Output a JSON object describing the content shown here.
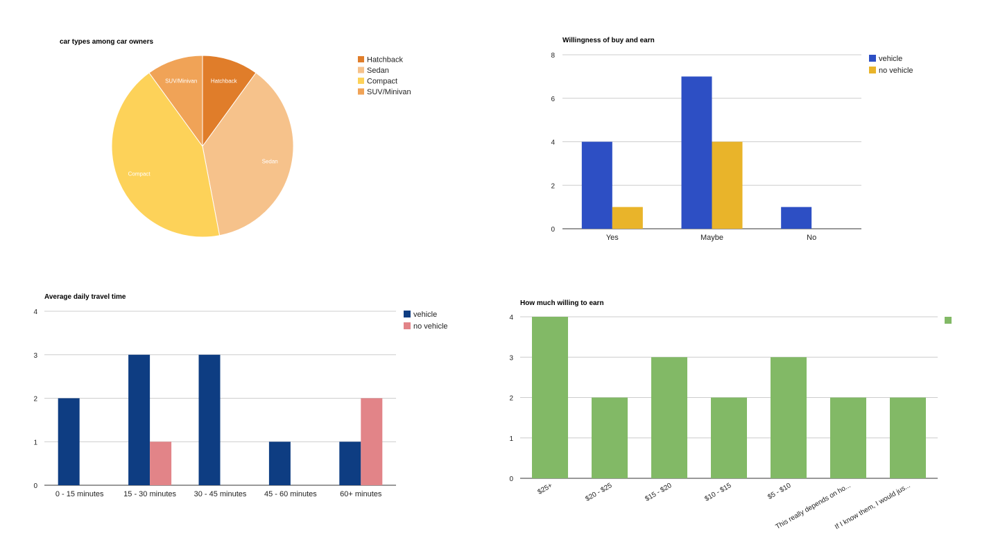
{
  "chart_data": [
    {
      "type": "pie",
      "title": "car types among car owners",
      "categories": [
        "Hatchback",
        "Sedan",
        "Compact",
        "SUV/Minivan"
      ],
      "values": [
        10,
        37,
        43,
        10
      ],
      "colors": [
        "#e07d2a",
        "#f6c28b",
        "#fdd259",
        "#f0a357"
      ],
      "legend": "right"
    },
    {
      "type": "bar",
      "title": "Willingness of buy and earn",
      "categories": [
        "Yes",
        "Maybe",
        "No"
      ],
      "series": [
        {
          "name": "vehicle",
          "values": [
            4,
            7,
            1
          ],
          "color": "#2d4fc4"
        },
        {
          "name": "no vehicle",
          "values": [
            1,
            4,
            0
          ],
          "color": "#e9b42a"
        }
      ],
      "ylim": [
        0,
        8
      ],
      "yticks": [
        0,
        2,
        4,
        6,
        8
      ],
      "grid": true,
      "legend": "right"
    },
    {
      "type": "bar",
      "title": "Average daily travel time",
      "categories": [
        "0 - 15 minutes",
        "15 - 30 minutes",
        "30 - 45 minutes",
        "45 - 60 minutes",
        "60+ minutes"
      ],
      "series": [
        {
          "name": "vehicle",
          "values": [
            2,
            3,
            3,
            1,
            1
          ],
          "color": "#0e3d82"
        },
        {
          "name": "no vehicle",
          "values": [
            0,
            1,
            0,
            0,
            2
          ],
          "color": "#e28488"
        }
      ],
      "ylim": [
        0,
        4
      ],
      "yticks": [
        0,
        1,
        2,
        3,
        4
      ],
      "grid": true,
      "legend": "right"
    },
    {
      "type": "bar",
      "title": "How much willing to earn",
      "categories": [
        "$25+",
        "$20 - $25",
        "$15 - $20",
        "$10 - $15",
        "$5 - $10",
        "This really depends on ho...",
        "If I know them, I would jus..."
      ],
      "series": [
        {
          "values": [
            4,
            2,
            3,
            2,
            3,
            2,
            2
          ],
          "color": "#82b966"
        }
      ],
      "ylim": [
        0,
        4
      ],
      "yticks": [
        0,
        1,
        2,
        3,
        4
      ],
      "grid": true,
      "legend": "right"
    }
  ]
}
